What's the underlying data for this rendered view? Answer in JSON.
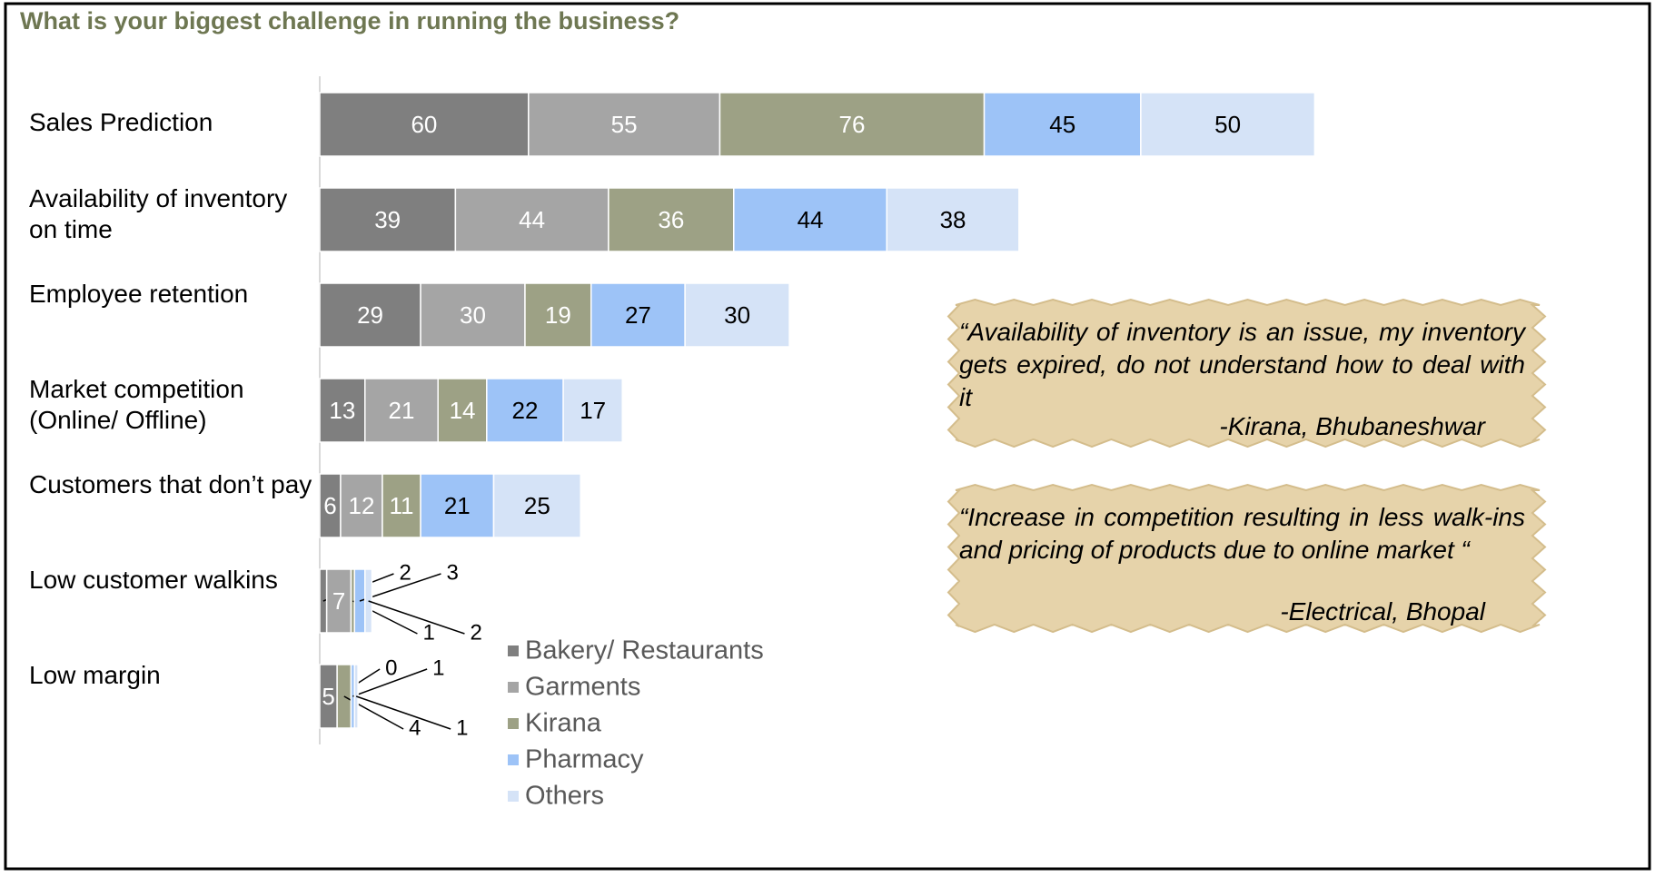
{
  "chart_data": {
    "type": "stacked-bar-horizontal",
    "title": "What is your biggest challenge in running the business?",
    "categories": [
      "Sales Prediction",
      "Availability of inventory on time",
      "Employee retention",
      "Market competition (Online/ Offline)",
      "Customers that don’t pay",
      "Low customer walkins",
      "Low margin"
    ],
    "series": [
      {
        "name": "Bakery/ Restaurants",
        "color": "#7f7f7f",
        "values": [
          60,
          39,
          29,
          13,
          6,
          2,
          5
        ]
      },
      {
        "name": "Garments",
        "color": "#a5a5a5",
        "values": [
          55,
          44,
          30,
          21,
          12,
          7,
          0
        ]
      },
      {
        "name": "Kirana",
        "color": "#9da185",
        "values": [
          76,
          36,
          19,
          14,
          11,
          1,
          4
        ]
      },
      {
        "name": "Pharmacy",
        "color": "#9dc3f7",
        "values": [
          45,
          44,
          27,
          22,
          21,
          3,
          1
        ]
      },
      {
        "name": "Others",
        "color": "#d5e3f7",
        "values": [
          50,
          38,
          30,
          17,
          25,
          2,
          1
        ]
      }
    ],
    "xlim": [
      0,
      300
    ],
    "annotations": [
      {
        "text": "“Availability of inventory is an issue, my inventory gets expired, do not understand how to deal with it",
        "source": "-Kirana, Bhubaneshwar"
      },
      {
        "text": "“Increase in competition resulting in less walk-ins and pricing of products due to online market “",
        "source": "-Electrical, Bhopal"
      }
    ]
  }
}
